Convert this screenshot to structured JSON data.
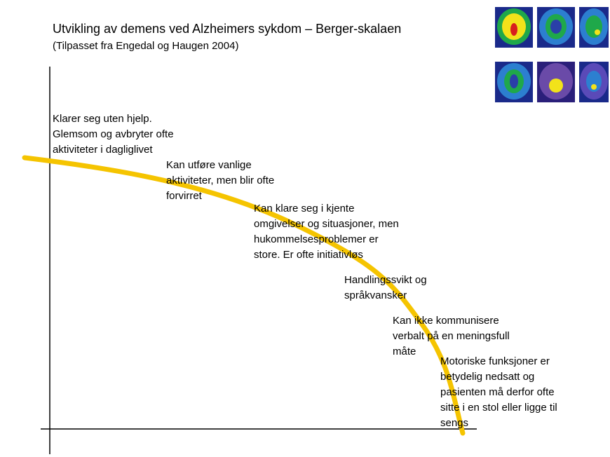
{
  "title": "Utvikling av demens ved Alzheimers sykdom – Berger-skalaen",
  "subtitle": "(Tilpasset fra Engedal og Haugen 2004)",
  "stages": [
    [
      "Klarer seg uten hjelp.",
      "Glemsom og avbryter ofte",
      "aktiviteter i dagliglivet"
    ],
    [
      "Kan utføre vanlige",
      "aktiviteter, men blir ofte",
      "forvirret"
    ],
    [
      "Kan klare seg i kjente",
      "omgivelser og situasjoner, men",
      "hukommelsesproblemer er",
      "store. Er ofte initiativløs"
    ],
    [
      "Handlingssvikt og",
      "språkvansker"
    ],
    [
      "Kan ikke kommunisere",
      "verbalt på en meningsfull",
      "måte"
    ],
    [
      "Motoriske funksjoner er",
      "betydelig nedsatt og",
      "pasienten må derfor ofte",
      "sitte i en stol eller ligge til",
      "sengs"
    ]
  ]
}
